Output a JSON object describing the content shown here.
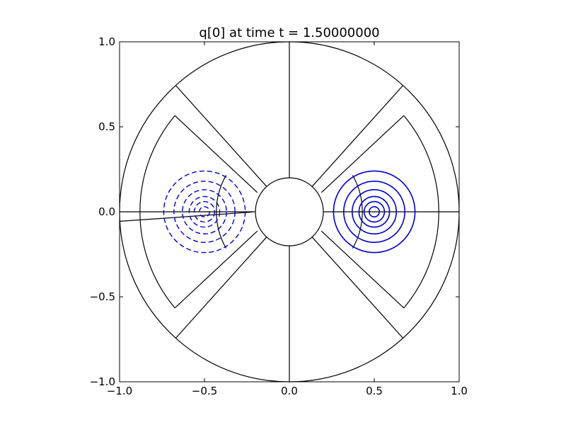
{
  "chart_data": {
    "type": "contour",
    "title": "q[0] at time t =     1.50000000",
    "xlabel": "",
    "ylabel": "",
    "xlim": [
      -1.0,
      1.0
    ],
    "ylim": [
      -1.0,
      1.0
    ],
    "x_ticks": [
      {
        "value": -1.0,
        "label": "−1.0"
      },
      {
        "value": -0.5,
        "label": "−0.5"
      },
      {
        "value": 0.0,
        "label": "0.0"
      },
      {
        "value": 0.5,
        "label": "0.5"
      },
      {
        "value": 1.0,
        "label": "1.0"
      }
    ],
    "y_ticks": [
      {
        "value": -1.0,
        "label": "−1.0"
      },
      {
        "value": -0.5,
        "label": "−0.5"
      },
      {
        "value": 0.0,
        "label": "0.0"
      },
      {
        "value": 0.5,
        "label": "0.5"
      },
      {
        "value": 1.0,
        "label": "1.0"
      }
    ],
    "grid": false,
    "domain_outline": {
      "outer_radius": 1.0,
      "inner_radius": 0.2,
      "middle_radius": 0.88,
      "inner_arc_radius": 0.43,
      "color": "#000000"
    },
    "contour_sets": [
      {
        "center": [
          0.5,
          0.0
        ],
        "style": "solid",
        "color": "#0000cc",
        "radii": [
          0.03,
          0.06,
          0.09,
          0.13,
          0.18,
          0.24
        ]
      },
      {
        "center": [
          -0.5,
          0.0
        ],
        "style": "dashed",
        "color": "#0000cc",
        "radii": [
          0.03,
          0.06,
          0.09,
          0.13,
          0.18,
          0.24
        ]
      }
    ]
  }
}
